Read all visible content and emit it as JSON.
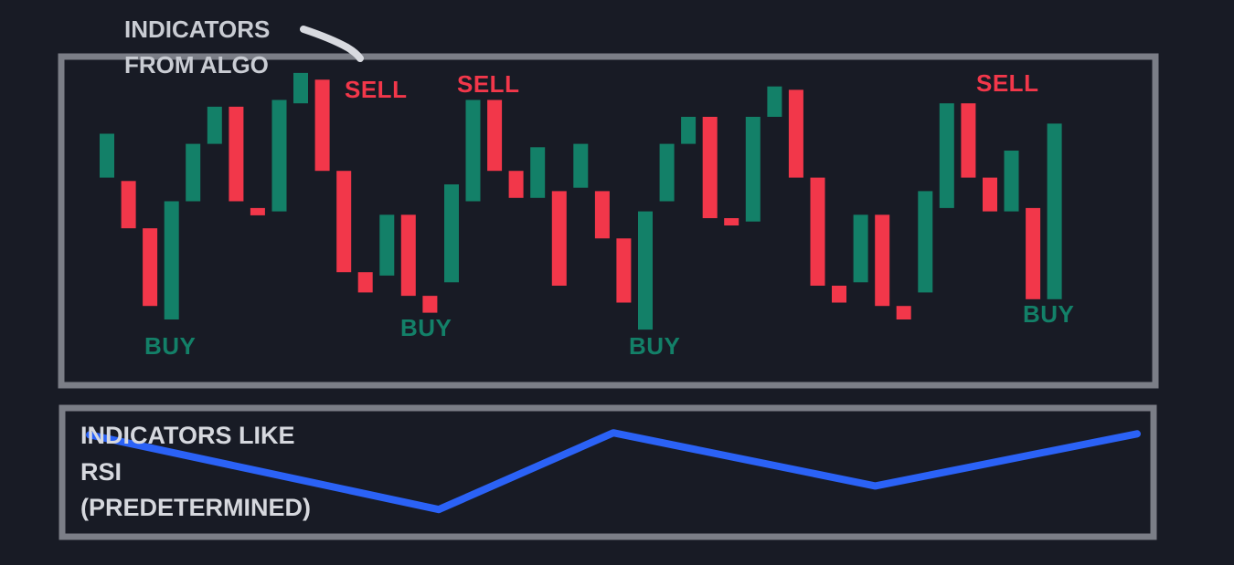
{
  "annotations": {
    "top_title_line1": "INDICATORS",
    "top_title_line2": "FROM ALGO",
    "bottom_title_line1": "INDICATORS LIKE",
    "bottom_title_line2": "RSI",
    "bottom_title_line3": "(PREDETERMINED)"
  },
  "signals": [
    {
      "label": "SELL",
      "kind": "sell"
    },
    {
      "label": "SELL",
      "kind": "sell"
    },
    {
      "label": "SELL",
      "kind": "sell"
    },
    {
      "label": "BUY",
      "kind": "buy"
    },
    {
      "label": "BUY",
      "kind": "buy"
    },
    {
      "label": "BUY",
      "kind": "buy"
    },
    {
      "label": "BUY",
      "kind": "buy"
    }
  ],
  "candles": [
    {
      "dir": "up",
      "open": 42,
      "close": 55
    },
    {
      "dir": "down",
      "open": 41,
      "close": 27
    },
    {
      "dir": "down",
      "open": 27,
      "close": 4
    },
    {
      "dir": "up",
      "open": 0,
      "close": 35
    },
    {
      "dir": "up",
      "open": 35,
      "close": 52
    },
    {
      "dir": "up",
      "open": 52,
      "close": 63
    },
    {
      "dir": "down",
      "open": 63,
      "close": 35
    },
    {
      "dir": "down",
      "open": 33,
      "close": 31
    },
    {
      "dir": "up",
      "open": 32,
      "close": 65
    },
    {
      "dir": "up",
      "open": 64,
      "close": 73
    },
    {
      "dir": "down",
      "open": 71,
      "close": 44
    },
    {
      "dir": "down",
      "open": 44,
      "close": 14
    },
    {
      "dir": "down",
      "open": 14,
      "close": 8
    },
    {
      "dir": "up",
      "open": 13,
      "close": 31
    },
    {
      "dir": "down",
      "open": 31,
      "close": 7
    },
    {
      "dir": "down",
      "open": 7,
      "close": 2
    },
    {
      "dir": "up",
      "open": 11,
      "close": 40
    },
    {
      "dir": "up",
      "open": 35,
      "close": 65
    },
    {
      "dir": "down",
      "open": 65,
      "close": 44
    },
    {
      "dir": "down",
      "open": 44,
      "close": 36
    },
    {
      "dir": "up",
      "open": 36,
      "close": 51
    },
    {
      "dir": "down",
      "open": 38,
      "close": 10
    },
    {
      "dir": "up",
      "open": 39,
      "close": 52
    },
    {
      "dir": "down",
      "open": 38,
      "close": 24
    },
    {
      "dir": "down",
      "open": 24,
      "close": 5
    },
    {
      "dir": "up",
      "open": -3,
      "close": 32
    },
    {
      "dir": "up",
      "open": 35,
      "close": 52
    },
    {
      "dir": "up",
      "open": 52,
      "close": 60
    },
    {
      "dir": "down",
      "open": 60,
      "close": 30
    },
    {
      "dir": "down",
      "open": 30,
      "close": 28
    },
    {
      "dir": "up",
      "open": 29,
      "close": 60
    },
    {
      "dir": "up",
      "open": 60,
      "close": 69
    },
    {
      "dir": "down",
      "open": 68,
      "close": 42
    },
    {
      "dir": "down",
      "open": 42,
      "close": 10
    },
    {
      "dir": "down",
      "open": 10,
      "close": 5
    },
    {
      "dir": "up",
      "open": 11,
      "close": 31
    },
    {
      "dir": "down",
      "open": 31,
      "close": 4
    },
    {
      "dir": "down",
      "open": 4,
      "close": 0
    },
    {
      "dir": "up",
      "open": 8,
      "close": 38
    },
    {
      "dir": "up",
      "open": 33,
      "close": 64
    },
    {
      "dir": "down",
      "open": 64,
      "close": 42
    },
    {
      "dir": "down",
      "open": 42,
      "close": 32
    },
    {
      "dir": "up",
      "open": 32,
      "close": 50
    },
    {
      "dir": "down",
      "open": 33,
      "close": 6
    },
    {
      "dir": "up",
      "open": 6,
      "close": 58
    }
  ],
  "rsi_points": [
    {
      "t": 0,
      "v": 88
    },
    {
      "t": 2,
      "v": 15
    },
    {
      "t": 3,
      "v": 90
    },
    {
      "t": 4.5,
      "v": 38
    },
    {
      "t": 6,
      "v": 89
    }
  ],
  "colors": {
    "background": "#181b25",
    "frame": "#7b7e87",
    "bull": "#138068",
    "bear": "#f2374a",
    "rsi_line": "#2b62f6",
    "title": "#c9ccd3",
    "arrow": "#d8dae0"
  }
}
